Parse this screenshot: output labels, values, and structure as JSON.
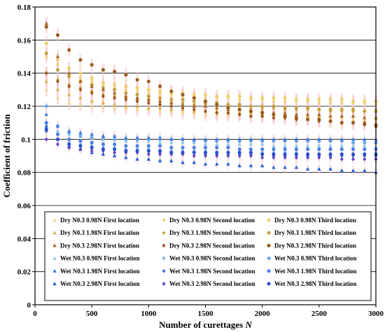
{
  "chart_data": {
    "type": "scatter",
    "title": "",
    "xlabel": "Number of curettages",
    "xlabel_symbol": "N",
    "ylabel": "Coefficient of friction",
    "xlim": [
      0,
      3000
    ],
    "ylim": [
      0,
      0.18
    ],
    "x_ticks": [
      "0",
      "500",
      "1000",
      "1500",
      "2000",
      "2500",
      "3000"
    ],
    "y_ticks": [
      "0",
      "0.02",
      "0.04",
      "0.06",
      "0.08",
      "0.1",
      "0.12",
      "0.14",
      "0.16",
      "0.18"
    ],
    "grid": "horizontal",
    "legend_placement": "inside-bottom",
    "x": [
      100,
      200,
      300,
      400,
      500,
      600,
      700,
      800,
      900,
      1000,
      1100,
      1200,
      1300,
      1400,
      1500,
      1600,
      1700,
      1800,
      1900,
      2000,
      2100,
      2200,
      2300,
      2400,
      2500,
      2600,
      2700,
      2800,
      2900,
      3000
    ],
    "series": [
      {
        "name": "Dry N0.3 0.98N First location",
        "marker": "triangle",
        "color": "#f5d58a",
        "values": [
          0.13,
          0.125,
          0.122,
          0.121,
          0.12,
          0.12,
          0.119,
          0.119,
          0.118,
          0.118,
          0.117,
          0.117,
          0.116,
          0.116,
          0.115,
          0.115,
          0.115,
          0.115,
          0.114,
          0.114,
          0.114,
          0.114,
          0.113,
          0.113,
          0.113,
          0.113,
          0.113,
          0.112,
          0.112,
          0.112
        ]
      },
      {
        "name": "Dry N0.3 0.98N Second location",
        "marker": "diamond",
        "color": "#f0d27a",
        "values": [
          0.15,
          0.145,
          0.14,
          0.137,
          0.135,
          0.133,
          0.131,
          0.13,
          0.129,
          0.128,
          0.127,
          0.127,
          0.126,
          0.126,
          0.125,
          0.125,
          0.125,
          0.124,
          0.124,
          0.124,
          0.123,
          0.123,
          0.123,
          0.123,
          0.122,
          0.122,
          0.122,
          0.122,
          0.122,
          0.121
        ]
      },
      {
        "name": "Dry N0.3 0.98N Third location",
        "marker": "circle",
        "color": "#efd070",
        "values": [
          0.158,
          0.148,
          0.143,
          0.14,
          0.137,
          0.134,
          0.133,
          0.132,
          0.131,
          0.13,
          0.129,
          0.128,
          0.128,
          0.127,
          0.127,
          0.126,
          0.126,
          0.126,
          0.125,
          0.125,
          0.125,
          0.125,
          0.124,
          0.124,
          0.124,
          0.124,
          0.124,
          0.123,
          0.123,
          0.123
        ]
      },
      {
        "name": "Dry N0.3 1.98N First location",
        "marker": "triangle",
        "color": "#d9b24a",
        "values": [
          0.135,
          0.13,
          0.127,
          0.125,
          0.123,
          0.122,
          0.121,
          0.12,
          0.12,
          0.119,
          0.119,
          0.118,
          0.118,
          0.117,
          0.117,
          0.117,
          0.116,
          0.116,
          0.116,
          0.115,
          0.115,
          0.115,
          0.115,
          0.114,
          0.114,
          0.114,
          0.114,
          0.114,
          0.113,
          0.113
        ]
      },
      {
        "name": "Dry N0.3 1.98N Second location",
        "marker": "diamond",
        "color": "#c9a23a",
        "values": [
          0.14,
          0.136,
          0.133,
          0.131,
          0.129,
          0.127,
          0.126,
          0.125,
          0.124,
          0.124,
          0.123,
          0.122,
          0.122,
          0.121,
          0.121,
          0.12,
          0.12,
          0.12,
          0.119,
          0.119,
          0.119,
          0.118,
          0.118,
          0.118,
          0.118,
          0.117,
          0.117,
          0.117,
          0.117,
          0.117
        ]
      },
      {
        "name": "Dry N0.3 1.98N Third location",
        "marker": "circle",
        "color": "#c8a040",
        "values": [
          0.152,
          0.142,
          0.138,
          0.135,
          0.133,
          0.131,
          0.13,
          0.128,
          0.127,
          0.126,
          0.125,
          0.124,
          0.124,
          0.123,
          0.122,
          0.122,
          0.121,
          0.121,
          0.12,
          0.12,
          0.12,
          0.119,
          0.119,
          0.119,
          0.118,
          0.118,
          0.118,
          0.118,
          0.117,
          0.117
        ]
      },
      {
        "name": "Dry N0.3 2.98N First location",
        "marker": "triangle",
        "color": "#a86828",
        "values": [
          0.17,
          0.15,
          0.14,
          0.135,
          0.132,
          0.13,
          0.128,
          0.126,
          0.125,
          0.124,
          0.123,
          0.122,
          0.121,
          0.12,
          0.12,
          0.119,
          0.118,
          0.118,
          0.117,
          0.117,
          0.116,
          0.116,
          0.115,
          0.115,
          0.115,
          0.114,
          0.114,
          0.114,
          0.113,
          0.113
        ]
      },
      {
        "name": "Dry N0.3 2.98N Second location",
        "marker": "diamond",
        "color": "#a0501a",
        "values": [
          0.14,
          0.135,
          0.132,
          0.13,
          0.128,
          0.126,
          0.125,
          0.124,
          0.123,
          0.122,
          0.121,
          0.12,
          0.119,
          0.118,
          0.117,
          0.116,
          0.116,
          0.115,
          0.114,
          0.114,
          0.113,
          0.113,
          0.112,
          0.112,
          0.111,
          0.111,
          0.11,
          0.11,
          0.11,
          0.109
        ]
      },
      {
        "name": "Dry N0.3 2.98N Third location",
        "marker": "circle",
        "color": "#9c5a1c",
        "values": [
          0.168,
          0.163,
          0.154,
          0.148,
          0.145,
          0.142,
          0.141,
          0.139,
          0.136,
          0.135,
          0.132,
          0.129,
          0.127,
          0.125,
          0.123,
          0.121,
          0.119,
          0.118,
          0.117,
          0.116,
          0.115,
          0.114,
          0.113,
          0.112,
          0.112,
          0.111,
          0.11,
          0.11,
          0.109,
          0.108
        ]
      },
      {
        "name": "Wet N0.3 0.98N First location",
        "marker": "triangle",
        "color": "#8ec8f0",
        "values": [
          0.11,
          0.105,
          0.103,
          0.102,
          0.101,
          0.1,
          0.1,
          0.099,
          0.099,
          0.099,
          0.098,
          0.098,
          0.098,
          0.098,
          0.097,
          0.097,
          0.097,
          0.097,
          0.097,
          0.097,
          0.096,
          0.096,
          0.096,
          0.096,
          0.096,
          0.096,
          0.096,
          0.096,
          0.096,
          0.095
        ]
      },
      {
        "name": "Wet N0.3 0.98N Second location",
        "marker": "diamond",
        "color": "#7ab4ec",
        "values": [
          0.105,
          0.1,
          0.098,
          0.097,
          0.096,
          0.095,
          0.095,
          0.094,
          0.094,
          0.094,
          0.093,
          0.093,
          0.093,
          0.093,
          0.093,
          0.092,
          0.092,
          0.092,
          0.092,
          0.092,
          0.092,
          0.092,
          0.092,
          0.091,
          0.091,
          0.091,
          0.091,
          0.091,
          0.091,
          0.091
        ]
      },
      {
        "name": "Wet N0.3 0.98N Third location",
        "marker": "circle",
        "color": "#6aa8ee",
        "values": [
          0.12,
          0.108,
          0.104,
          0.102,
          0.101,
          0.101,
          0.1,
          0.1,
          0.1,
          0.1,
          0.1,
          0.1,
          0.1,
          0.099,
          0.099,
          0.099,
          0.099,
          0.099,
          0.099,
          0.099,
          0.099,
          0.099,
          0.099,
          0.099,
          0.099,
          0.099,
          0.099,
          0.098,
          0.098,
          0.098
        ]
      },
      {
        "name": "Wet N0.3 1.98N First location",
        "marker": "triangle",
        "color": "#3a7be0",
        "values": [
          0.115,
          0.108,
          0.105,
          0.104,
          0.103,
          0.102,
          0.102,
          0.101,
          0.101,
          0.101,
          0.101,
          0.1,
          0.1,
          0.1,
          0.1,
          0.1,
          0.1,
          0.1,
          0.1,
          0.1,
          0.1,
          0.1,
          0.1,
          0.1,
          0.1,
          0.1,
          0.1,
          0.1,
          0.1,
          0.1
        ]
      },
      {
        "name": "Wet N0.3 1.98N Second location",
        "marker": "diamond",
        "color": "#3c6fd4",
        "values": [
          0.105,
          0.1,
          0.097,
          0.096,
          0.095,
          0.094,
          0.094,
          0.093,
          0.093,
          0.093,
          0.092,
          0.092,
          0.092,
          0.092,
          0.091,
          0.091,
          0.091,
          0.091,
          0.091,
          0.091,
          0.09,
          0.09,
          0.09,
          0.09,
          0.09,
          0.09,
          0.09,
          0.09,
          0.09,
          0.09
        ]
      },
      {
        "name": "Wet N0.3 1.98N Third location",
        "marker": "circle",
        "color": "#4a80e6",
        "values": [
          0.11,
          0.103,
          0.1,
          0.099,
          0.098,
          0.097,
          0.097,
          0.096,
          0.096,
          0.096,
          0.096,
          0.095,
          0.095,
          0.095,
          0.095,
          0.095,
          0.095,
          0.094,
          0.094,
          0.094,
          0.094,
          0.094,
          0.094,
          0.094,
          0.094,
          0.094,
          0.094,
          0.094,
          0.094,
          0.094
        ]
      },
      {
        "name": "Wet N0.3 2.98N First location",
        "marker": "triangle",
        "color": "#2060d8",
        "values": [
          0.108,
          0.1,
          0.096,
          0.094,
          0.092,
          0.091,
          0.09,
          0.089,
          0.088,
          0.088,
          0.087,
          0.087,
          0.086,
          0.086,
          0.085,
          0.085,
          0.085,
          0.084,
          0.084,
          0.084,
          0.083,
          0.083,
          0.083,
          0.082,
          0.082,
          0.082,
          0.081,
          0.081,
          0.081,
          0.08
        ]
      },
      {
        "name": "Wet N0.3 2.98N Second location",
        "marker": "diamond",
        "color": "#6040c8",
        "values": [
          0.1,
          0.097,
          0.095,
          0.094,
          0.093,
          0.093,
          0.092,
          0.092,
          0.092,
          0.091,
          0.091,
          0.091,
          0.091,
          0.09,
          0.09,
          0.09,
          0.09,
          0.09,
          0.09,
          0.089,
          0.089,
          0.089,
          0.089,
          0.089,
          0.089,
          0.089,
          0.088,
          0.088,
          0.088,
          0.088
        ]
      },
      {
        "name": "Wet N0.3 2.98N Third location",
        "marker": "circle",
        "color": "#2850d0",
        "values": [
          0.106,
          0.1,
          0.097,
          0.096,
          0.095,
          0.094,
          0.094,
          0.093,
          0.093,
          0.093,
          0.093,
          0.092,
          0.092,
          0.092,
          0.092,
          0.092,
          0.092,
          0.092,
          0.092,
          0.091,
          0.091,
          0.091,
          0.091,
          0.091,
          0.091,
          0.091,
          0.091,
          0.091,
          0.091,
          0.091
        ]
      }
    ]
  }
}
